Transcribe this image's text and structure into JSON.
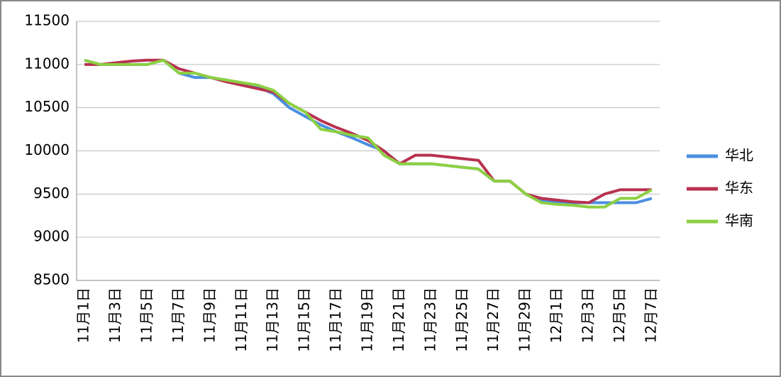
{
  "chart_data": {
    "type": "line",
    "categories": [
      "11月1日",
      null,
      "11月3日",
      null,
      "11月5日",
      null,
      "11月7日",
      null,
      "11月9日",
      null,
      "11月11日",
      null,
      "11月13日",
      null,
      "11月15日",
      null,
      "11月17日",
      null,
      "11月19日",
      null,
      "11月21日",
      null,
      "11月23日",
      null,
      "11月25日",
      null,
      "11月27日",
      null,
      "11月29日",
      null,
      "12月1日",
      null,
      "12月3日",
      null,
      "12月5日",
      null,
      "12月7日"
    ],
    "series": [
      {
        "name": "华北",
        "color": "#4a8fe0",
        "values": [
          11050,
          11000,
          11000,
          11000,
          11000,
          11050,
          10900,
          10850,
          10850,
          10820,
          10780,
          10740,
          10660,
          10500,
          10400,
          10300,
          10220,
          10150,
          10070,
          10000,
          9850,
          9850,
          9850,
          9830,
          9810,
          9790,
          9650,
          9650,
          9500,
          9420,
          9400,
          9400,
          9400,
          9400,
          9400,
          9400,
          9450
        ]
      },
      {
        "name": "华东",
        "color": "#b83250",
        "values": [
          11000,
          11000,
          11020,
          11040,
          11050,
          11050,
          10950,
          10900,
          10850,
          10800,
          10760,
          10720,
          10680,
          10550,
          10450,
          10350,
          10270,
          10200,
          10120,
          10000,
          9850,
          9950,
          9950,
          9930,
          9910,
          9890,
          9650,
          9650,
          9500,
          9450,
          9430,
          9410,
          9400,
          9500,
          9550,
          9550,
          9550
        ]
      },
      {
        "name": "华南",
        "color": "#8cd042",
        "values": [
          11050,
          11000,
          11000,
          11000,
          11000,
          11050,
          10900,
          10900,
          10850,
          10820,
          10790,
          10760,
          10700,
          10550,
          10450,
          10250,
          10220,
          10180,
          10150,
          9950,
          9850,
          9850,
          9850,
          9830,
          9810,
          9790,
          9650,
          9650,
          9500,
          9400,
          9380,
          9370,
          9350,
          9350,
          9450,
          9450,
          9550
        ]
      }
    ],
    "ylim": [
      8500,
      11500
    ],
    "yticks": [
      8500,
      9000,
      9500,
      10000,
      10500,
      11000,
      11500
    ],
    "grid": true,
    "legend": "right"
  }
}
